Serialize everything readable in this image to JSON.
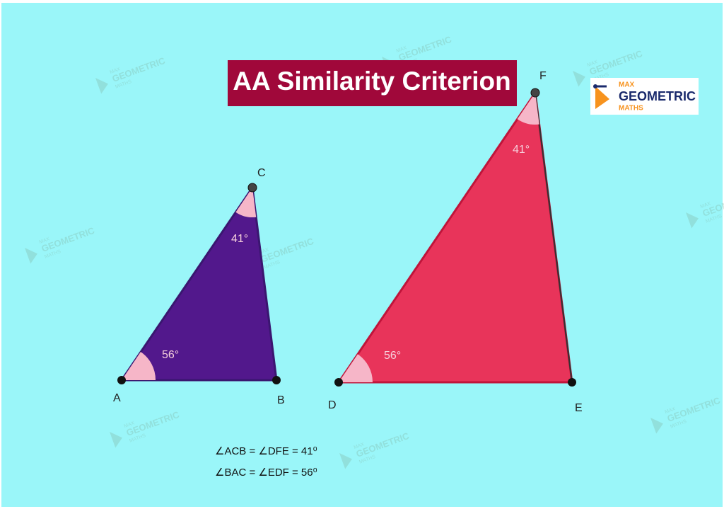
{
  "title": "AA Similarity Criterion",
  "logo": {
    "line1": "MAX",
    "line2": "GEOMETRIC",
    "line3": "MATHS"
  },
  "triangle_1": {
    "vertices": [
      "A",
      "B",
      "C"
    ],
    "angle_a": "56°",
    "angle_c": "41°"
  },
  "triangle_2": {
    "vertices": [
      "D",
      "E",
      "F"
    ],
    "angle_d": "56°",
    "angle_f": "41°"
  },
  "equations": [
    "∠ACB = ∠DFE = 41⁰",
    "∠BAC = ∠EDF = 56⁰"
  ]
}
